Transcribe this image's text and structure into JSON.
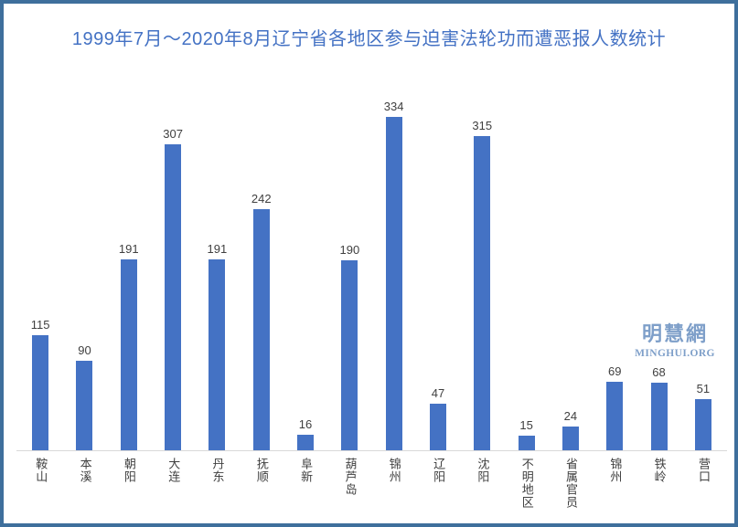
{
  "chart_data": {
    "type": "bar",
    "title": "1999年7月～2020年8月辽宁省各地区参与迫害法轮功而遭恶报人数统计",
    "categories": [
      "鞍山",
      "本溪",
      "朝阳",
      "大连",
      "丹东",
      "抚顺",
      "阜新",
      "葫芦岛",
      "锦州",
      "辽阳",
      "沈阳",
      "不明地区",
      "省属官员",
      "锦州",
      "铁岭",
      "营口"
    ],
    "values": [
      115,
      90,
      191,
      307,
      191,
      242,
      16,
      190,
      334,
      47,
      315,
      15,
      24,
      69,
      68,
      51
    ],
    "xlabel": "",
    "ylabel": "",
    "ylim": [
      0,
      350
    ],
    "grid": "off",
    "legend": "none",
    "value_labels": "above-bars",
    "category_label_orientation": "vertical-stacked"
  },
  "watermark": {
    "cjk": "明慧網",
    "latin": "MINGHUI.ORG"
  },
  "colors": {
    "bar": "#4472C4",
    "title": "#4472C4",
    "border": "#3E6F9C",
    "axis": "#D9D9D9",
    "label": "#404040",
    "watermark": "#7E9FC9"
  }
}
